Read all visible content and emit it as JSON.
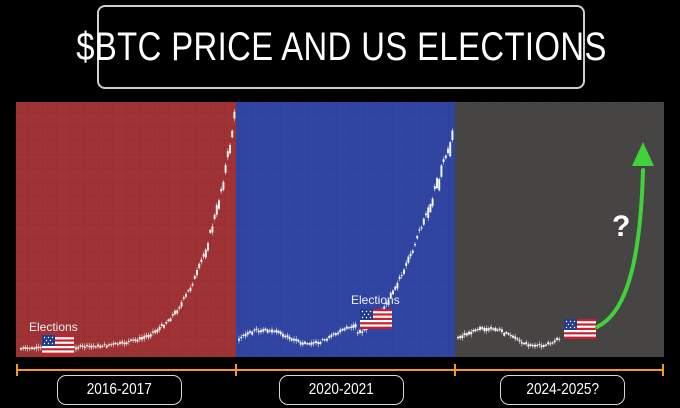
{
  "title": "$BTC PRICE AND US ELECTIONS",
  "election_label": "Elections",
  "question_mark": "?",
  "colors": {
    "panel_2016": "#9e3235",
    "panel_2020": "#2f45a1",
    "panel_2024": "#474444",
    "timeline": "#f39a1e",
    "arrow": "#3fd23a"
  },
  "chart_data": {
    "type": "line",
    "periods": [
      {
        "label": "2016-2017",
        "election_marker": true,
        "trend": "parabolic rise after election"
      },
      {
        "label": "2020-2021",
        "election_marker": true,
        "trend": "parabolic rise after election"
      },
      {
        "label": "2024-2025?",
        "election_marker": true,
        "trend": "projected rise"
      }
    ]
  }
}
